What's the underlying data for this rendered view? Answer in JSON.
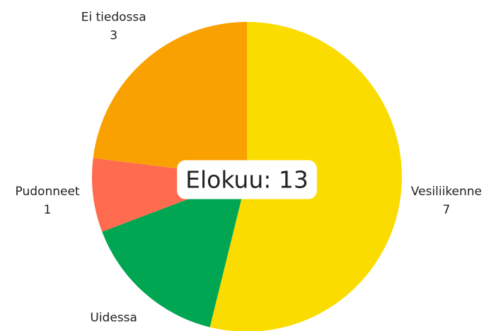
{
  "chart_data": {
    "type": "pie",
    "categories": [
      "Vesiliikenne",
      "Uidessa",
      "Pudonneet",
      "Ei tiedossa"
    ],
    "values": [
      7,
      2,
      1,
      3
    ],
    "colors": [
      "#fbdc00",
      "#00a651",
      "#ff6b4f",
      "#f9a100"
    ],
    "center_label": "Elokuu: 13"
  }
}
